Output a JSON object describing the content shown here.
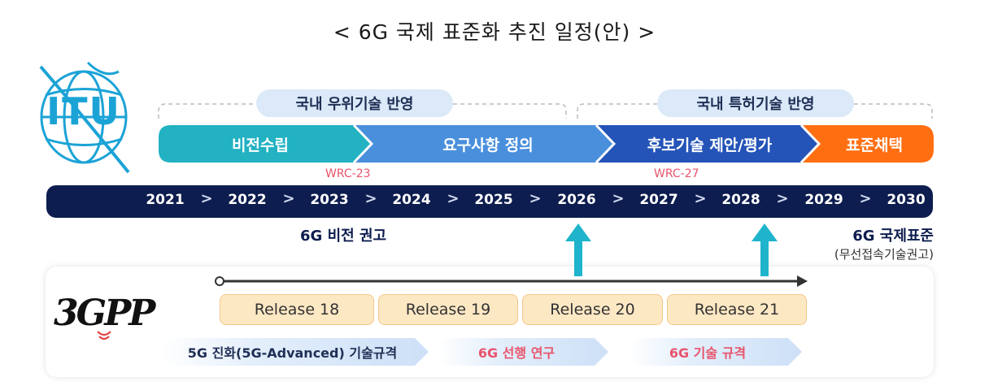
{
  "title": "< 6G 국제 표준화 추진 일정(안) >",
  "itu_logo_text": "ITU",
  "reflect": [
    "국내 우위기술 반영",
    "국내 특허기술 반영"
  ],
  "phases": [
    {
      "label": "비전수립",
      "color": "#22b2c2"
    },
    {
      "label": "요구사항 정의",
      "color": "#4a8fdc"
    },
    {
      "label": "후보기술 제안/평가",
      "color": "#2454b8"
    },
    {
      "label": "표준채택",
      "color": "#ff6f12"
    }
  ],
  "wrc": [
    "WRC-23",
    "WRC-27"
  ],
  "years": [
    "2021",
    "2022",
    "2023",
    "2024",
    "2025",
    "2026",
    "2027",
    "2028",
    "2029",
    "2030"
  ],
  "chevron": ">",
  "milestones": {
    "vision": "6G 비전 권고",
    "standard": "6G 국제표준",
    "standard_sub": "(무선접속기술권고)"
  },
  "gpp_logo_text": "3GPP",
  "releases": [
    "Release 18",
    "Release 19",
    "Release 20",
    "Release 21"
  ],
  "subs": [
    "5G 진화(5G-Advanced) 기술규격",
    "6G 선행 연구",
    "6G 기술 규격"
  ]
}
